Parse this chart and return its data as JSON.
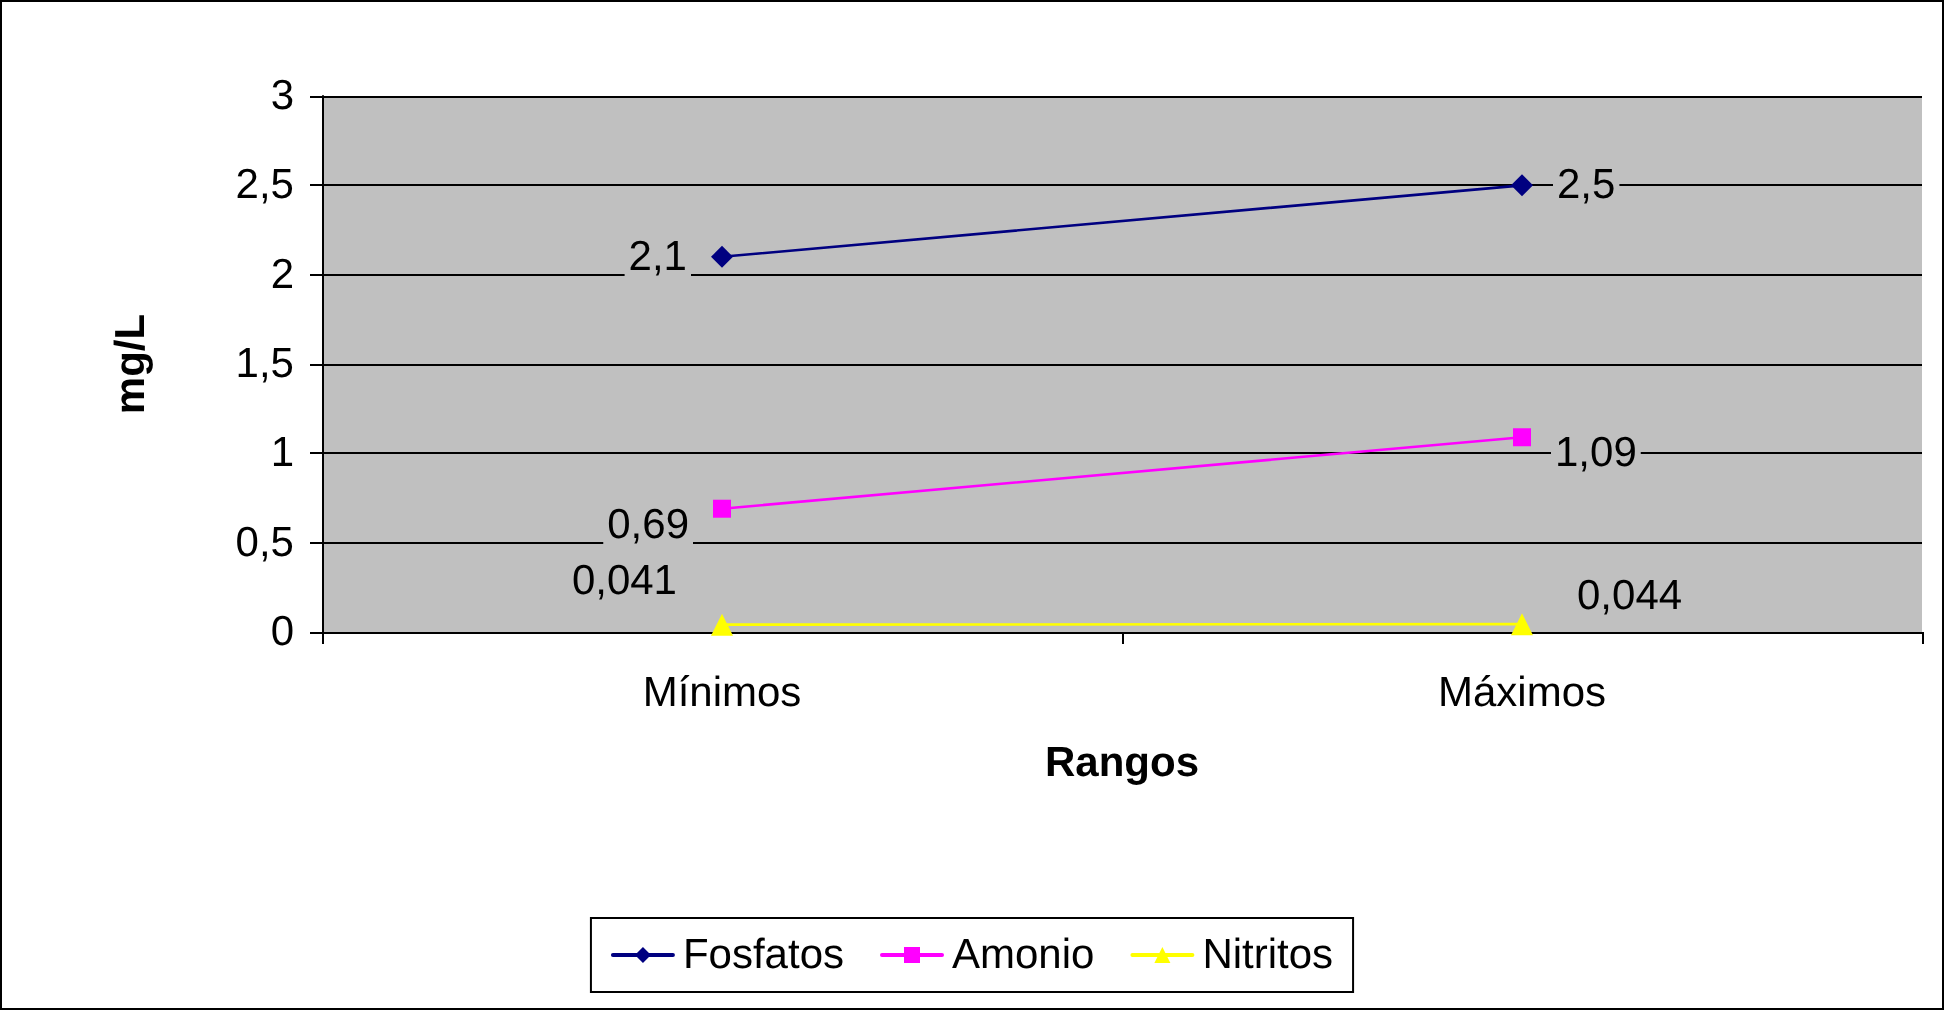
{
  "chart_data": {
    "type": "line",
    "xlabel": "Rangos",
    "ylabel": "mg/L",
    "categories": [
      "Mínimos",
      "Máximos"
    ],
    "series": [
      {
        "name": "Fosfatos",
        "color": "#000080",
        "marker": "diamond",
        "values": [
          2.1,
          2.5
        ],
        "value_labels": [
          "2,1",
          "2,5"
        ]
      },
      {
        "name": "Amonio",
        "color": "#ff00ff",
        "marker": "square",
        "values": [
          0.69,
          1.09
        ],
        "value_labels": [
          "0,69",
          "1,09"
        ]
      },
      {
        "name": "Nitritos",
        "color": "#ffff00",
        "marker": "triangle",
        "values": [
          0.041,
          0.044
        ],
        "value_labels": [
          "0,041",
          "0,044"
        ]
      }
    ],
    "ylim": [
      0,
      3
    ],
    "yticks": [
      0,
      {
        "value": 0.5,
        "label": "0,5"
      },
      1,
      {
        "value": 1.5,
        "label": "1,5"
      },
      2,
      {
        "value": 2.5,
        "label": "2,5"
      },
      3
    ],
    "grid": "y",
    "legend": "bottom",
    "line_style": "solid"
  }
}
